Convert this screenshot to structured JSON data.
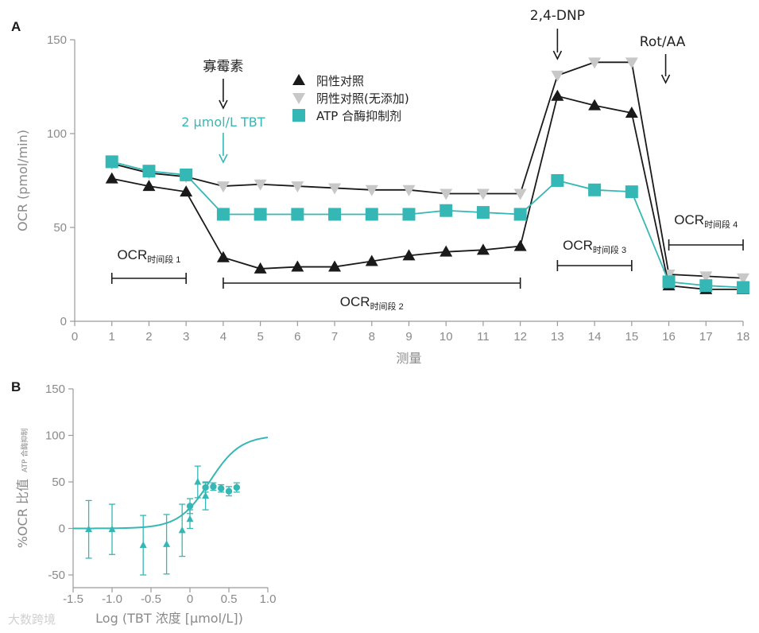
{
  "chart_data": [
    {
      "panel": "A",
      "type": "line",
      "xlabel": "测量",
      "ylabel": "OCR (pmol/min)",
      "xlim": [
        0,
        18
      ],
      "ylim": [
        0,
        150
      ],
      "xticks": [
        0,
        1,
        2,
        3,
        4,
        5,
        6,
        7,
        8,
        9,
        10,
        11,
        12,
        13,
        14,
        15,
        16,
        17,
        18
      ],
      "yticks": [
        0,
        50,
        100,
        150
      ],
      "series": [
        {
          "name": "阳性对照",
          "marker": "triangle-up",
          "color": "#1a1a1a",
          "x": [
            1,
            2,
            3,
            4,
            5,
            6,
            7,
            8,
            9,
            10,
            11,
            12,
            13,
            14,
            15,
            16,
            17,
            18
          ],
          "values": [
            76,
            72,
            69,
            34,
            28,
            29,
            29,
            32,
            35,
            37,
            38,
            40,
            120,
            115,
            111,
            19,
            17,
            17
          ]
        },
        {
          "name": "阴性对照(无添加)",
          "marker": "triangle-down",
          "color": "#c8c8c8",
          "x": [
            1,
            2,
            3,
            4,
            5,
            6,
            7,
            8,
            9,
            10,
            11,
            12,
            13,
            14,
            15,
            16,
            17,
            18
          ],
          "values": [
            84,
            79,
            77,
            72,
            73,
            72,
            71,
            70,
            70,
            68,
            68,
            68,
            131,
            138,
            138,
            25,
            24,
            23
          ]
        },
        {
          "name": "ATP 合酶抑制剂",
          "marker": "square",
          "color": "#35b8b5",
          "x": [
            1,
            2,
            3,
            4,
            5,
            6,
            7,
            8,
            9,
            10,
            11,
            12,
            13,
            14,
            15,
            16,
            17,
            18
          ],
          "values": [
            85,
            80,
            78,
            57,
            57,
            57,
            57,
            57,
            57,
            59,
            58,
            57,
            75,
            70,
            69,
            21,
            19,
            18
          ]
        }
      ],
      "annotations": [
        {
          "text": "寡霉素",
          "x": 4
        },
        {
          "text": "2 μmol/L TBT",
          "x": 4
        },
        {
          "text": "2,4-DNP",
          "x": 13
        },
        {
          "text": "Rot/AA",
          "x": 16
        }
      ],
      "periods": [
        {
          "label": "OCR",
          "sub": "时间段 1",
          "start": 1,
          "end": 3
        },
        {
          "label": "OCR",
          "sub": "时间段 2",
          "start": 4,
          "end": 12
        },
        {
          "label": "OCR",
          "sub": "时间段 3",
          "start": 13,
          "end": 15
        },
        {
          "label": "OCR",
          "sub": "时间段 4",
          "start": 16,
          "end": 18
        }
      ]
    },
    {
      "panel": "B",
      "type": "scatter",
      "xlabel": "Log (TBT 浓度 [μmol/L])",
      "ylabel_main": "%OCR 比值",
      "ylabel_sub": "ATP 合酶抑制",
      "xlim": [
        -1.5,
        1.0
      ],
      "ylim": [
        -50,
        150
      ],
      "xticks": [
        -1.5,
        -1.0,
        -0.5,
        0,
        0.5,
        1.0
      ],
      "xtick_labels": [
        "-1.5",
        "-1.0",
        "-0.5",
        "0",
        "0.5",
        "1.0"
      ],
      "yticks": [
        -50,
        0,
        50,
        100,
        150
      ],
      "curve": {
        "type": "sigmoid",
        "bottom": 0,
        "top": 100,
        "logEC50": 0.25,
        "hill": 2.2
      },
      "triangles": [
        {
          "x": -1.3,
          "y": -1,
          "err": 31
        },
        {
          "x": -1.0,
          "y": -1,
          "err": 27
        },
        {
          "x": -0.6,
          "y": -18,
          "err": 32
        },
        {
          "x": -0.3,
          "y": -17,
          "err": 32
        },
        {
          "x": -0.1,
          "y": -2,
          "err": 28
        },
        {
          "x": 0.0,
          "y": 10,
          "err": 10
        },
        {
          "x": 0.1,
          "y": 50,
          "err": 17
        },
        {
          "x": 0.2,
          "y": 35,
          "err": 15
        }
      ],
      "circles": [
        {
          "x": 0.0,
          "y": 24,
          "err": 8
        },
        {
          "x": 0.2,
          "y": 44,
          "err": 5
        },
        {
          "x": 0.3,
          "y": 45,
          "err": 4
        },
        {
          "x": 0.4,
          "y": 43,
          "err": 4
        },
        {
          "x": 0.5,
          "y": 40,
          "err": 5
        },
        {
          "x": 0.6,
          "y": 44,
          "err": 5
        }
      ]
    }
  ],
  "panel_labels": {
    "a": "A",
    "b": "B"
  },
  "watermark": "大数跨境"
}
